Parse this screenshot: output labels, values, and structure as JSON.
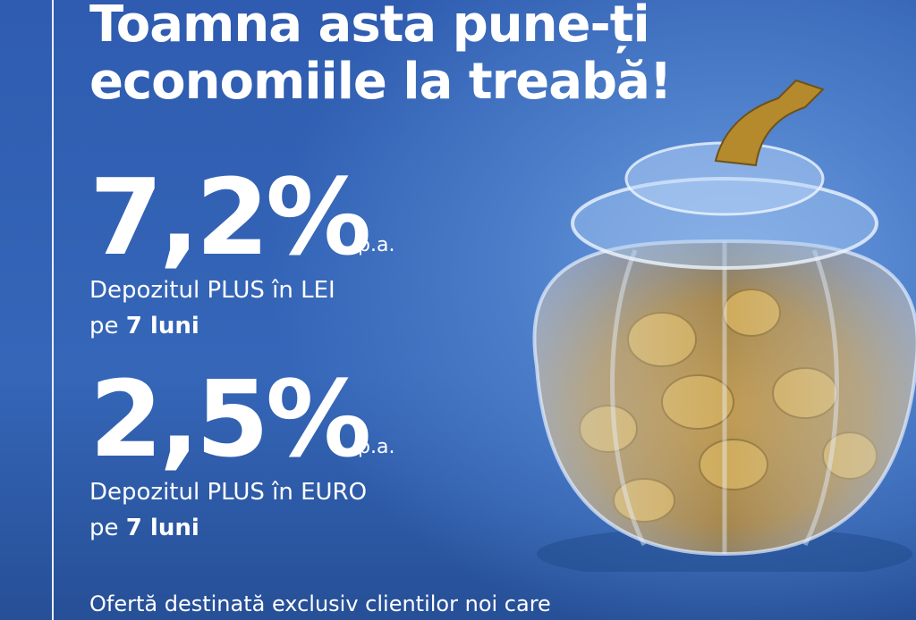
{
  "title_line1": "Toamna asta pune-ți",
  "title_line2": "economiile la treabă!",
  "offers": [
    {
      "rate": "7,2%",
      "unit": "p.a.",
      "product": "Depozitul PLUS în LEI",
      "term_prefix": "pe",
      "term_value": "7 luni"
    },
    {
      "rate": "2,5%",
      "unit": "p.a.",
      "product": "Depozitul PLUS în EURO",
      "term_prefix": "pe",
      "term_value": "7 luni"
    }
  ],
  "footer": "Ofertă destinată exclusiv clientilor noi care",
  "colors": {
    "background": "#3566b8",
    "text": "#ffffff",
    "coin": "#d4a53a"
  },
  "image": "glass-pumpkin-jar-with-gold-coins"
}
